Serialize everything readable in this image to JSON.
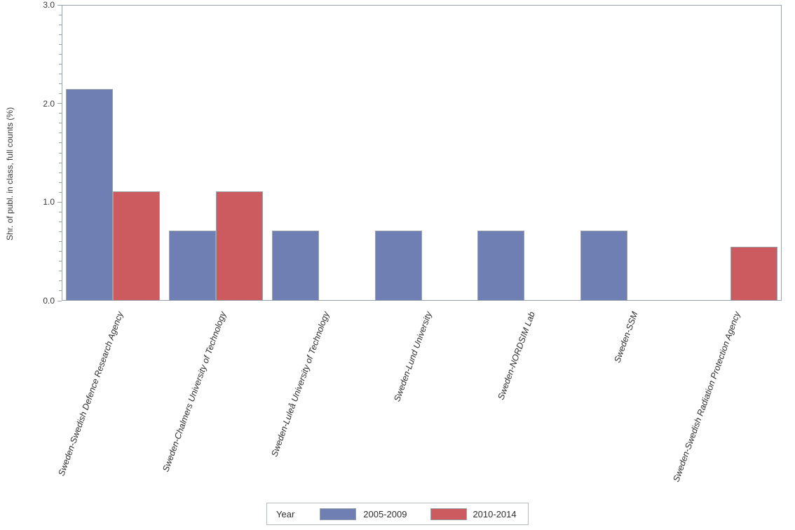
{
  "chart_data": {
    "type": "bar",
    "title": "",
    "xlabel": "",
    "ylabel": "Shr. of publ. in class, full counts (%)",
    "ylim": [
      0,
      3
    ],
    "ytick_major_interval": 1.0,
    "ytick_minor_interval": 0.1,
    "ytick_labels": [
      "0.0",
      "1.0",
      "2.0",
      "3.0"
    ],
    "grid": false,
    "categories": [
      "Sweden-Swedish Defence Research Agency",
      "Sweden-Chalmers University of Technology",
      "Sweden-Luleå University of Technology",
      "Sweden-Lund University",
      "Sweden-NORDSIM Lab",
      "Sweden-SSM",
      "Sweden-Swedish Radiation Protection Agency"
    ],
    "series": [
      {
        "name": "2005-2009",
        "color": "#6f7eb3",
        "values": [
          2.15,
          0.71,
          0.71,
          0.71,
          0.71,
          0.71,
          0
        ]
      },
      {
        "name": "2010-2014",
        "color": "#cb5b5e",
        "values": [
          1.11,
          1.11,
          0,
          0,
          0,
          0,
          0.55
        ]
      }
    ],
    "legend": {
      "title": "Year",
      "position": "bottom"
    }
  },
  "colors": {
    "bar_blue": "#6f7eb3",
    "bar_red": "#cb5b5e",
    "bar_border": "#9ba1a8",
    "axis": "#9ba1a8",
    "legend_border": "#b6bcc0",
    "text": "#3a3a3a",
    "background": "#ffffff"
  }
}
